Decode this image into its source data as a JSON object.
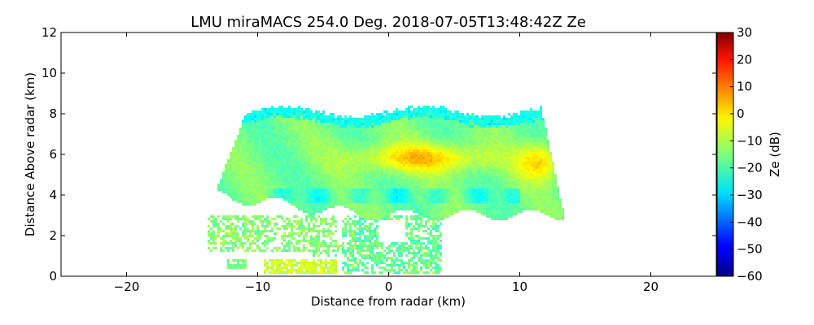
{
  "chart_data": {
    "type": "heatmap",
    "title": "LMU miraMACS 254.0 Deg. 2018-07-05T13:48:42Z  Ze",
    "xlabel": "Distance from radar (km)",
    "ylabel": "Distance Above radar  (km)",
    "xlim": [
      -25,
      25
    ],
    "ylim": [
      0,
      12
    ],
    "x_ticks": [
      -20,
      -10,
      0,
      10,
      20
    ],
    "x_tick_labels": [
      "−20",
      "−10",
      "0",
      "10",
      "20"
    ],
    "y_ticks": [
      0,
      2,
      4,
      6,
      8,
      10,
      12
    ],
    "y_tick_labels": [
      "0",
      "2",
      "4",
      "6",
      "8",
      "10",
      "12"
    ],
    "colorbar": {
      "label": "Ze (dB)",
      "range": [
        -60,
        30
      ],
      "ticks": [
        30,
        20,
        10,
        0,
        -10,
        -20,
        -30,
        -40,
        -50,
        -60
      ],
      "tick_labels": [
        "30",
        "20",
        "10",
        "0",
        "−10",
        "−20",
        "−30",
        "−40",
        "−50",
        "−60"
      ],
      "colormap": "jet"
    },
    "reflectivity_regions": [
      {
        "feature": "main cloud layer envelope",
        "x_range_km": [
          -13.5,
          13.5
        ],
        "z_range_km": [
          3.0,
          8.4
        ],
        "ze_dB": -15
      },
      {
        "feature": "core maximum",
        "x_range_km": [
          -3,
          8
        ],
        "z_range_km": [
          5.0,
          6.7
        ],
        "ze_dB": 0
      },
      {
        "feature": "right edge maximum",
        "x_range_km": [
          10,
          13
        ],
        "z_range_km": [
          4.5,
          6.5
        ],
        "ze_dB": 3
      },
      {
        "feature": "cloud top",
        "x_range_km": [
          -11,
          12
        ],
        "z_range_km": [
          7.5,
          8.4
        ],
        "ze_dB": -28
      },
      {
        "feature": "lower fragments",
        "x_range_km": [
          -14,
          4
        ],
        "z_range_km": [
          0,
          3.0
        ],
        "ze_dB": -20
      },
      {
        "feature": "base scraps",
        "x_range_km": [
          -10,
          -4
        ],
        "z_range_km": [
          0.2,
          0.8
        ],
        "ze_dB": -10
      }
    ]
  },
  "colors": {
    "axes": "#000000",
    "background": "#ffffff"
  }
}
